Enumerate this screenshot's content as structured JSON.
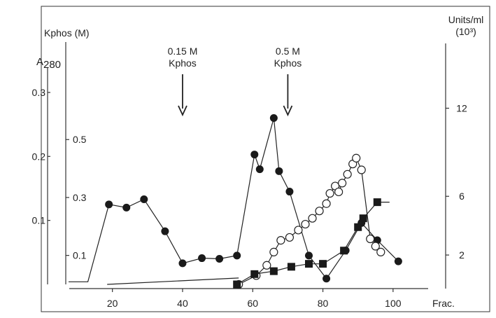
{
  "chart_data": {
    "type": "line",
    "xlabel": "Frac.",
    "x_ticks": [
      20,
      40,
      60,
      80,
      100
    ],
    "xlim": [
      7.5,
      110
    ],
    "axes": {
      "a280": {
        "label": "A",
        "label_sub": "280",
        "ticks": [
          0.1,
          0.2,
          0.3
        ],
        "tick_labels": [
          "0.1",
          "0.2",
          "0.3"
        ],
        "ylim": [
          0.0,
          0.335
        ]
      },
      "kphos": {
        "label": "Kphos (M)",
        "ticks": [
          0.1,
          0.3,
          0.5
        ],
        "tick_labels": [
          "0.1",
          "0.3",
          "0.5"
        ],
        "ylim": [
          0.0,
          0.74
        ]
      },
      "units": {
        "label_line1": "Units/ml",
        "label_line2": "(10³)",
        "ticks": [
          2,
          6,
          12
        ],
        "tick_labels": [
          "2",
          "6",
          "12"
        ],
        "ylim": [
          0,
          14.6
        ]
      }
    },
    "annotations": [
      {
        "line1": "0.15 M",
        "line2": "Kphos",
        "x": 40
      },
      {
        "line1": "0.5 M",
        "line2": "Kphos",
        "x": 70
      }
    ],
    "series": [
      {
        "axis": "a280",
        "marker": "filled-circle",
        "x": [
          7.5,
          13,
          19,
          24,
          29,
          35,
          40,
          45.5,
          50.5,
          55.5,
          60.5,
          62,
          66,
          67.5,
          70.5,
          76,
          81,
          86.5,
          91,
          95.5,
          101.5
        ],
        "y": [
          0.004,
          0.004,
          0.125,
          0.12,
          0.133,
          0.083,
          0.033,
          0.041,
          0.04,
          0.045,
          0.203,
          0.18,
          0.26,
          0.177,
          0.145,
          0.045,
          0.009,
          0.053,
          0.096,
          0.069,
          0.036
        ]
      },
      {
        "axis": "kphos",
        "marker": "none",
        "x": [
          18.5,
          56
        ],
        "y": [
          0.0,
          0.022
        ]
      },
      {
        "axis": "units",
        "marker": "open-circle",
        "x": [
          56,
          61,
          64,
          66,
          68,
          70.5,
          73,
          75,
          77,
          79,
          81,
          82,
          83.5,
          84.5,
          85.5,
          87,
          88.5,
          89.5,
          91,
          93.5,
          95,
          96.5
        ],
        "y": [
          0,
          0.6,
          1.3,
          2.2,
          3.0,
          3.2,
          3.7,
          4.1,
          4.5,
          5.0,
          5.5,
          6.2,
          6.7,
          6.3,
          6.9,
          7.5,
          8.2,
          8.6,
          7.8,
          3.1,
          2.6,
          2.2
        ]
      },
      {
        "axis": "units",
        "marker": "filled-square",
        "x": [
          55.5,
          60.5,
          66,
          71,
          76,
          80,
          86,
          90,
          91.5,
          95.5,
          99
        ],
        "y": [
          0,
          0.7,
          0.9,
          1.2,
          1.4,
          1.4,
          2.3,
          3.9,
          4.5,
          5.6,
          5.6
        ]
      }
    ]
  }
}
